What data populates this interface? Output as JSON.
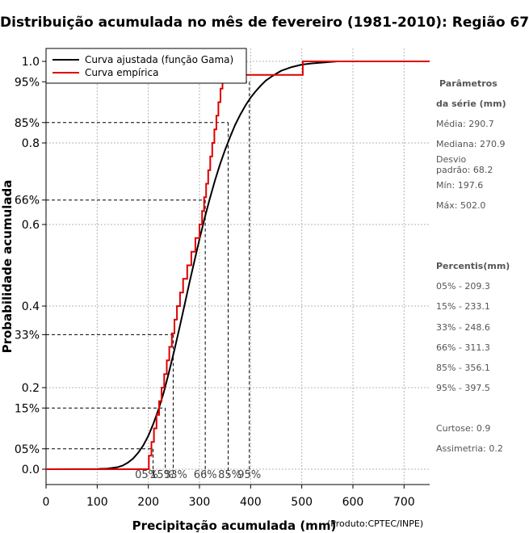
{
  "chart_data": {
    "type": "line",
    "title": "Distribuição acumulada no mês de fevereiro (1981-2010): Região 67",
    "xlabel": "Precipitação acumulada (mm)",
    "ylabel": "Probabilidade acumulada",
    "source_note": "(Produto:CPTEC/INPE)",
    "xlim": [
      0,
      750
    ],
    "ylim": [
      0,
      1
    ],
    "x_ticks": [
      "0",
      "100",
      "200",
      "300",
      "400",
      "500",
      "600",
      "700"
    ],
    "y_ticks": [
      "0.0",
      "0.2",
      "0.4",
      "0.6",
      "0.8",
      "1.0"
    ],
    "percentile_ticks": [
      "05%",
      "15%",
      "33%",
      "66%",
      "85%",
      "95%"
    ],
    "grid": true,
    "legend_position": "top-left",
    "series": [
      {
        "name": "Curva ajustada (função Gama)",
        "color": "#000000",
        "x": [
          0,
          100,
          120,
          140,
          150,
          160,
          170,
          180,
          190,
          200,
          210,
          220,
          230,
          240,
          250,
          260,
          270,
          280,
          290,
          300,
          310,
          320,
          330,
          340,
          350,
          360,
          370,
          380,
          390,
          400,
          410,
          420,
          430,
          440,
          450,
          460,
          480,
          500,
          520,
          540,
          560,
          570
        ],
        "y": [
          0,
          0.0003,
          0.0015,
          0.005,
          0.009,
          0.016,
          0.026,
          0.04,
          0.058,
          0.082,
          0.112,
          0.147,
          0.188,
          0.236,
          0.287,
          0.342,
          0.398,
          0.455,
          0.51,
          0.564,
          0.615,
          0.663,
          0.707,
          0.747,
          0.783,
          0.815,
          0.845,
          0.87,
          0.892,
          0.911,
          0.927,
          0.941,
          0.953,
          0.962,
          0.97,
          0.977,
          0.986,
          0.992,
          0.995,
          0.997,
          0.999,
          1.0
        ]
      },
      {
        "name": "Curva empírica",
        "color": "#dd0000",
        "x": [
          0,
          197.6,
          201,
          206,
          211,
          216,
          221,
          226,
          231,
          236,
          241,
          246,
          251,
          256,
          262,
          268,
          276,
          284,
          292,
          300,
          305,
          309,
          313,
          317,
          321,
          325,
          329,
          333,
          337,
          341,
          345,
          350,
          356,
          362,
          372,
          395,
          425,
          502,
          750
        ],
        "y": [
          0,
          0,
          0.033,
          0.067,
          0.1,
          0.133,
          0.167,
          0.2,
          0.233,
          0.267,
          0.3,
          0.333,
          0.367,
          0.4,
          0.433,
          0.467,
          0.5,
          0.533,
          0.567,
          0.6,
          0.633,
          0.667,
          0.7,
          0.733,
          0.767,
          0.8,
          0.833,
          0.867,
          0.9,
          0.933,
          0.967,
          0.967,
          0.967,
          0.967,
          0.967,
          0.967,
          0.967,
          1.0,
          1.0
        ]
      }
    ],
    "percentiles": [
      {
        "label": "05%",
        "p": 0.05,
        "x": 209.3
      },
      {
        "label": "15%",
        "p": 0.15,
        "x": 233.1
      },
      {
        "label": "33%",
        "p": 0.33,
        "x": 248.6
      },
      {
        "label": "66%",
        "p": 0.66,
        "x": 311.3
      },
      {
        "label": "85%",
        "p": 0.85,
        "x": 356.1
      },
      {
        "label": "95%",
        "p": 0.95,
        "x": 397.5
      }
    ]
  },
  "side_panel": {
    "params_title_1": "Parâmetros",
    "params_title_2": "da série (mm)",
    "media": "Média: 290.7",
    "mediana": "Mediana: 270.9",
    "desvio": "Desvio padrão: 68.2",
    "min": "Mín: 197.6",
    "max": "Máx: 502.0",
    "percentis_title": "Percentis(mm)",
    "p05": "05% - 209.3",
    "p15": "15% - 233.1",
    "p33": "33% - 248.6",
    "p66": "66% - 311.3",
    "p85": "85% - 356.1",
    "p95": "95% - 397.5",
    "curtose": "Curtose: 0.9",
    "assimetria": "Assimetria: 0.2"
  }
}
